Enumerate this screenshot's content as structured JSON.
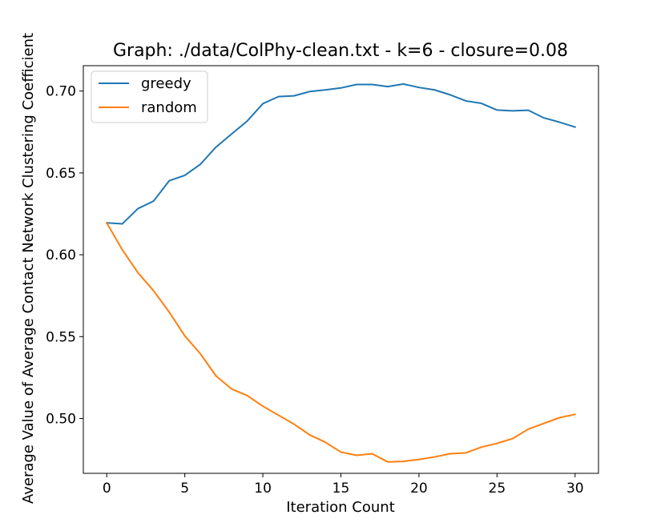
{
  "chart_data": {
    "type": "line",
    "title": "Graph: ./data/ColPhy-clean.txt - k=6 - closure=0.08",
    "xlabel": "Iteration Count",
    "ylabel": "Average Value of Average Contact Network Clustering Coefficient",
    "xlim": [
      -1.5,
      31.5
    ],
    "ylim": [
      0.4665,
      0.7155
    ],
    "xticks": [
      0,
      5,
      10,
      15,
      20,
      25,
      30
    ],
    "yticks": [
      0.5,
      0.55,
      0.6,
      0.65,
      0.7
    ],
    "ytick_labels": [
      "0.50",
      "0.55",
      "0.60",
      "0.65",
      "0.70"
    ],
    "legend_position": "top-left",
    "grid": false,
    "x": [
      0,
      1,
      2,
      3,
      4,
      5,
      6,
      7,
      8,
      9,
      10,
      11,
      12,
      13,
      14,
      15,
      16,
      17,
      18,
      19,
      20,
      21,
      22,
      23,
      24,
      25,
      26,
      27,
      28,
      29,
      30
    ],
    "series": [
      {
        "name": "greedy",
        "color": "#1f77b4",
        "values": [
          0.6195,
          0.6189,
          0.6282,
          0.6328,
          0.6452,
          0.6485,
          0.6553,
          0.6658,
          0.6738,
          0.6817,
          0.6923,
          0.6966,
          0.6971,
          0.6997,
          0.7007,
          0.7019,
          0.704,
          0.704,
          0.7027,
          0.7043,
          0.7022,
          0.7007,
          0.6977,
          0.694,
          0.6925,
          0.6884,
          0.6879,
          0.6883,
          0.6836,
          0.681,
          0.678
        ]
      },
      {
        "name": "random",
        "color": "#ff7f0e",
        "values": [
          0.6195,
          0.603,
          0.589,
          0.578,
          0.565,
          0.5505,
          0.5395,
          0.526,
          0.518,
          0.514,
          0.5075,
          0.502,
          0.4965,
          0.49,
          0.4855,
          0.4795,
          0.4775,
          0.4785,
          0.4735,
          0.4738,
          0.475,
          0.4765,
          0.4785,
          0.479,
          0.4825,
          0.4848,
          0.4877,
          0.4935,
          0.497,
          0.5005,
          0.5025
        ]
      }
    ]
  }
}
